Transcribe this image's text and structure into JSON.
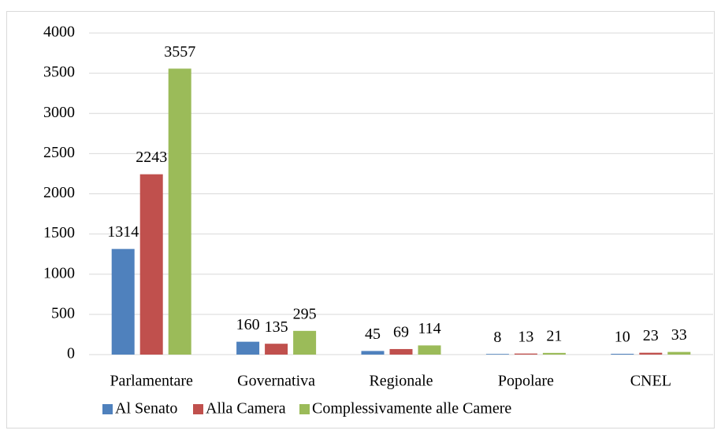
{
  "chart_data": {
    "type": "bar",
    "categories": [
      "Parlamentare",
      "Governativa",
      "Regionale",
      "Popolare",
      "CNEL"
    ],
    "series": [
      {
        "name": "Al Senato",
        "color": "#4f81bd",
        "values": [
          1314,
          160,
          45,
          8,
          10
        ]
      },
      {
        "name": "Alla Camera",
        "color": "#c0504d",
        "values": [
          2243,
          135,
          69,
          13,
          23
        ]
      },
      {
        "name": "Complessivamente alle Camere",
        "color": "#9bbb59",
        "values": [
          3557,
          295,
          114,
          21,
          33
        ]
      }
    ],
    "ylim": [
      0,
      4000
    ],
    "yticks": [
      0,
      500,
      1000,
      1500,
      2000,
      2500,
      3000,
      3500,
      4000
    ],
    "grid": true,
    "legend": "bottom"
  }
}
